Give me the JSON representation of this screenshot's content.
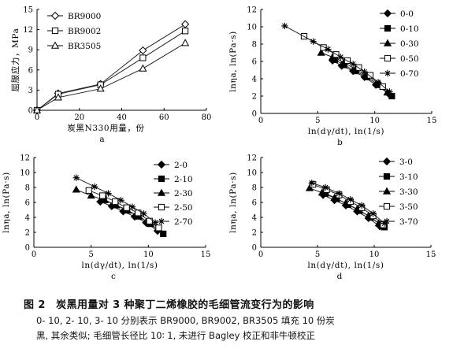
{
  "chart_data": [
    {
      "id": "a",
      "type": "line",
      "panel_label": "a",
      "xlabel": "炭黑N330用量，份",
      "ylabel": "屈服应力，MPa",
      "xlim": [
        0,
        80
      ],
      "ylim": [
        0,
        15
      ],
      "xticks": [
        "0",
        "20",
        "40",
        "60",
        "80"
      ],
      "yticks": [
        "0",
        "3",
        "6",
        "9",
        "12",
        "15"
      ],
      "x": [
        0,
        10,
        30,
        50,
        70
      ],
      "legend_position": "top-left",
      "series": [
        {
          "name": "BR9000",
          "marker": "diamond",
          "values": [
            0,
            2.5,
            3.9,
            8.9,
            12.8
          ]
        },
        {
          "name": "BR9002",
          "marker": "square",
          "values": [
            0,
            2.4,
            3.8,
            7.8,
            11.8
          ]
        },
        {
          "name": "BR3505",
          "marker": "triangle",
          "values": [
            0,
            1.9,
            3.2,
            6.2,
            10.0
          ]
        }
      ]
    },
    {
      "id": "b",
      "type": "scatter",
      "panel_label": "b",
      "xlabel": "ln(dγ/dt), ln(1/s)",
      "ylabel": "lnηa, ln(Pa·s)",
      "xlim": [
        0,
        15
      ],
      "ylim": [
        0,
        12
      ],
      "xticks": [
        "0",
        "5",
        "10",
        "15"
      ],
      "yticks": [
        "0",
        "2",
        "4",
        "6",
        "8",
        "10",
        "12"
      ],
      "legend_position": "right",
      "series": [
        {
          "name": "0-0",
          "marker": "diamond",
          "points": [
            [
              6.3,
              6.1
            ],
            [
              7.1,
              5.5
            ],
            [
              8.1,
              4.9
            ],
            [
              9.1,
              4.2
            ],
            [
              10.1,
              3.3
            ],
            [
              11.2,
              2.3
            ]
          ]
        },
        {
          "name": "0-10",
          "marker": "square-filled",
          "points": [
            [
              6.5,
              6.2
            ],
            [
              7.3,
              5.6
            ],
            [
              8.3,
              4.9
            ],
            [
              9.3,
              4.2
            ],
            [
              10.3,
              3.3
            ],
            [
              11.5,
              2.0
            ]
          ]
        },
        {
          "name": "0-30",
          "marker": "triangle",
          "points": [
            [
              5.3,
              7.0
            ],
            [
              6.3,
              6.5
            ],
            [
              7.3,
              5.9
            ],
            [
              8.3,
              5.1
            ],
            [
              9.3,
              4.4
            ],
            [
              10.4,
              3.4
            ],
            [
              11.1,
              2.4
            ]
          ]
        },
        {
          "name": "0-50",
          "marker": "square-open",
          "points": [
            [
              3.8,
              8.9
            ],
            [
              5.5,
              7.6
            ],
            [
              6.6,
              6.8
            ],
            [
              7.6,
              6.1
            ],
            [
              8.6,
              5.3
            ],
            [
              9.6,
              4.4
            ],
            [
              10.7,
              3.1
            ]
          ]
        },
        {
          "name": "0-70",
          "marker": "asterisk",
          "points": [
            [
              2.1,
              10.1
            ],
            [
              4.6,
              8.3
            ],
            [
              5.9,
              7.4
            ],
            [
              7.0,
              6.5
            ],
            [
              8.1,
              5.7
            ],
            [
              9.1,
              4.8
            ],
            [
              10.3,
              3.6
            ],
            [
              11.3,
              2.5
            ]
          ]
        }
      ]
    },
    {
      "id": "c",
      "type": "scatter",
      "panel_label": "c",
      "xlabel": "ln(dγ/dt), ln(1/s)",
      "ylabel": "lnηa, ln(Pa·s)",
      "xlim": [
        0,
        15
      ],
      "ylim": [
        0,
        12
      ],
      "xticks": [
        "0",
        "5",
        "10",
        "15"
      ],
      "yticks": [
        "0",
        "2",
        "4",
        "6",
        "8",
        "10",
        "12"
      ],
      "legend_position": "right",
      "series": [
        {
          "name": "2-0",
          "marker": "diamond",
          "points": [
            [
              5.8,
              6.1
            ],
            [
              6.8,
              5.5
            ],
            [
              7.8,
              4.8
            ],
            [
              8.8,
              4.1
            ],
            [
              9.8,
              3.3
            ],
            [
              10.8,
              2.2
            ]
          ]
        },
        {
          "name": "2-10",
          "marker": "square-filled",
          "points": [
            [
              6.1,
              6.4
            ],
            [
              7.1,
              5.7
            ],
            [
              8.1,
              5.0
            ],
            [
              9.1,
              4.2
            ],
            [
              10.1,
              3.2
            ],
            [
              11.3,
              1.8
            ]
          ]
        },
        {
          "name": "2-30",
          "marker": "triangle",
          "points": [
            [
              3.7,
              7.7
            ],
            [
              5.0,
              6.9
            ],
            [
              6.2,
              6.3
            ],
            [
              7.2,
              5.6
            ],
            [
              8.2,
              4.9
            ],
            [
              9.2,
              4.1
            ],
            [
              10.2,
              3.1
            ]
          ]
        },
        {
          "name": "2-50",
          "marker": "square-open",
          "points": [
            [
              4.8,
              7.6
            ],
            [
              6.0,
              6.9
            ],
            [
              7.1,
              6.1
            ],
            [
              8.1,
              5.3
            ],
            [
              9.1,
              4.6
            ],
            [
              10.1,
              3.5
            ],
            [
              10.9,
              2.6
            ]
          ]
        },
        {
          "name": "2-70",
          "marker": "asterisk",
          "points": [
            [
              3.7,
              9.3
            ],
            [
              5.3,
              8.1
            ],
            [
              6.5,
              7.2
            ],
            [
              7.6,
              6.3
            ],
            [
              8.6,
              5.4
            ],
            [
              9.6,
              4.5
            ],
            [
              10.6,
              3.3
            ]
          ]
        }
      ]
    },
    {
      "id": "d",
      "type": "scatter",
      "panel_label": "d",
      "xlabel": "ln(dγ/dt), ln(1/s)",
      "ylabel": "lnηa, ln(Pa·s)",
      "xlim": [
        0,
        15
      ],
      "ylim": [
        0,
        12
      ],
      "xticks": [
        "0",
        "5",
        "10",
        "15"
      ],
      "yticks": [
        "0",
        "2",
        "4",
        "6",
        "8",
        "10",
        "12"
      ],
      "legend_position": "right",
      "series": [
        {
          "name": "3-0",
          "marker": "diamond",
          "points": [
            [
              5.5,
              7.0
            ],
            [
              6.5,
              6.3
            ],
            [
              7.5,
              5.6
            ],
            [
              8.5,
              4.8
            ],
            [
              9.5,
              3.9
            ],
            [
              10.5,
              2.8
            ]
          ]
        },
        {
          "name": "3-10",
          "marker": "square-filled",
          "points": [
            [
              5.7,
              7.2
            ],
            [
              6.7,
              6.5
            ],
            [
              7.7,
              5.7
            ],
            [
              8.7,
              4.9
            ],
            [
              9.7,
              4.0
            ],
            [
              10.9,
              2.7
            ]
          ]
        },
        {
          "name": "3-30",
          "marker": "triangle",
          "points": [
            [
              4.3,
              7.9
            ],
            [
              5.4,
              7.3
            ],
            [
              6.5,
              6.6
            ],
            [
              7.5,
              5.9
            ],
            [
              8.5,
              5.1
            ],
            [
              9.5,
              4.2
            ],
            [
              10.4,
              3.2
            ]
          ]
        },
        {
          "name": "3-50",
          "marker": "square-open",
          "points": [
            [
              4.6,
              8.4
            ],
            [
              5.8,
              7.7
            ],
            [
              6.9,
              7.0
            ],
            [
              7.9,
              6.1
            ],
            [
              8.9,
              5.3
            ],
            [
              9.9,
              4.2
            ],
            [
              10.8,
              3.0
            ]
          ]
        },
        {
          "name": "3-70",
          "marker": "asterisk",
          "points": [
            [
              4.5,
              8.6
            ],
            [
              5.7,
              8.0
            ],
            [
              6.9,
              7.2
            ],
            [
              7.9,
              6.4
            ],
            [
              8.9,
              5.6
            ],
            [
              9.9,
              4.5
            ],
            [
              10.9,
              3.2
            ]
          ]
        }
      ]
    }
  ],
  "caption": {
    "line1": "图 2　炭黑用量对 3 种聚丁二烯橡胶的毛细管流变行为的影响",
    "line2": "0- 10, 2- 10, 3- 10 分别表示 BR9000, BR9002, BR3505 填充 10 份炭",
    "line3": "黑, 其余类似; 毛细管长径比 10∶ 1, 未进行 Bagley 校正和非牛顿校正"
  }
}
